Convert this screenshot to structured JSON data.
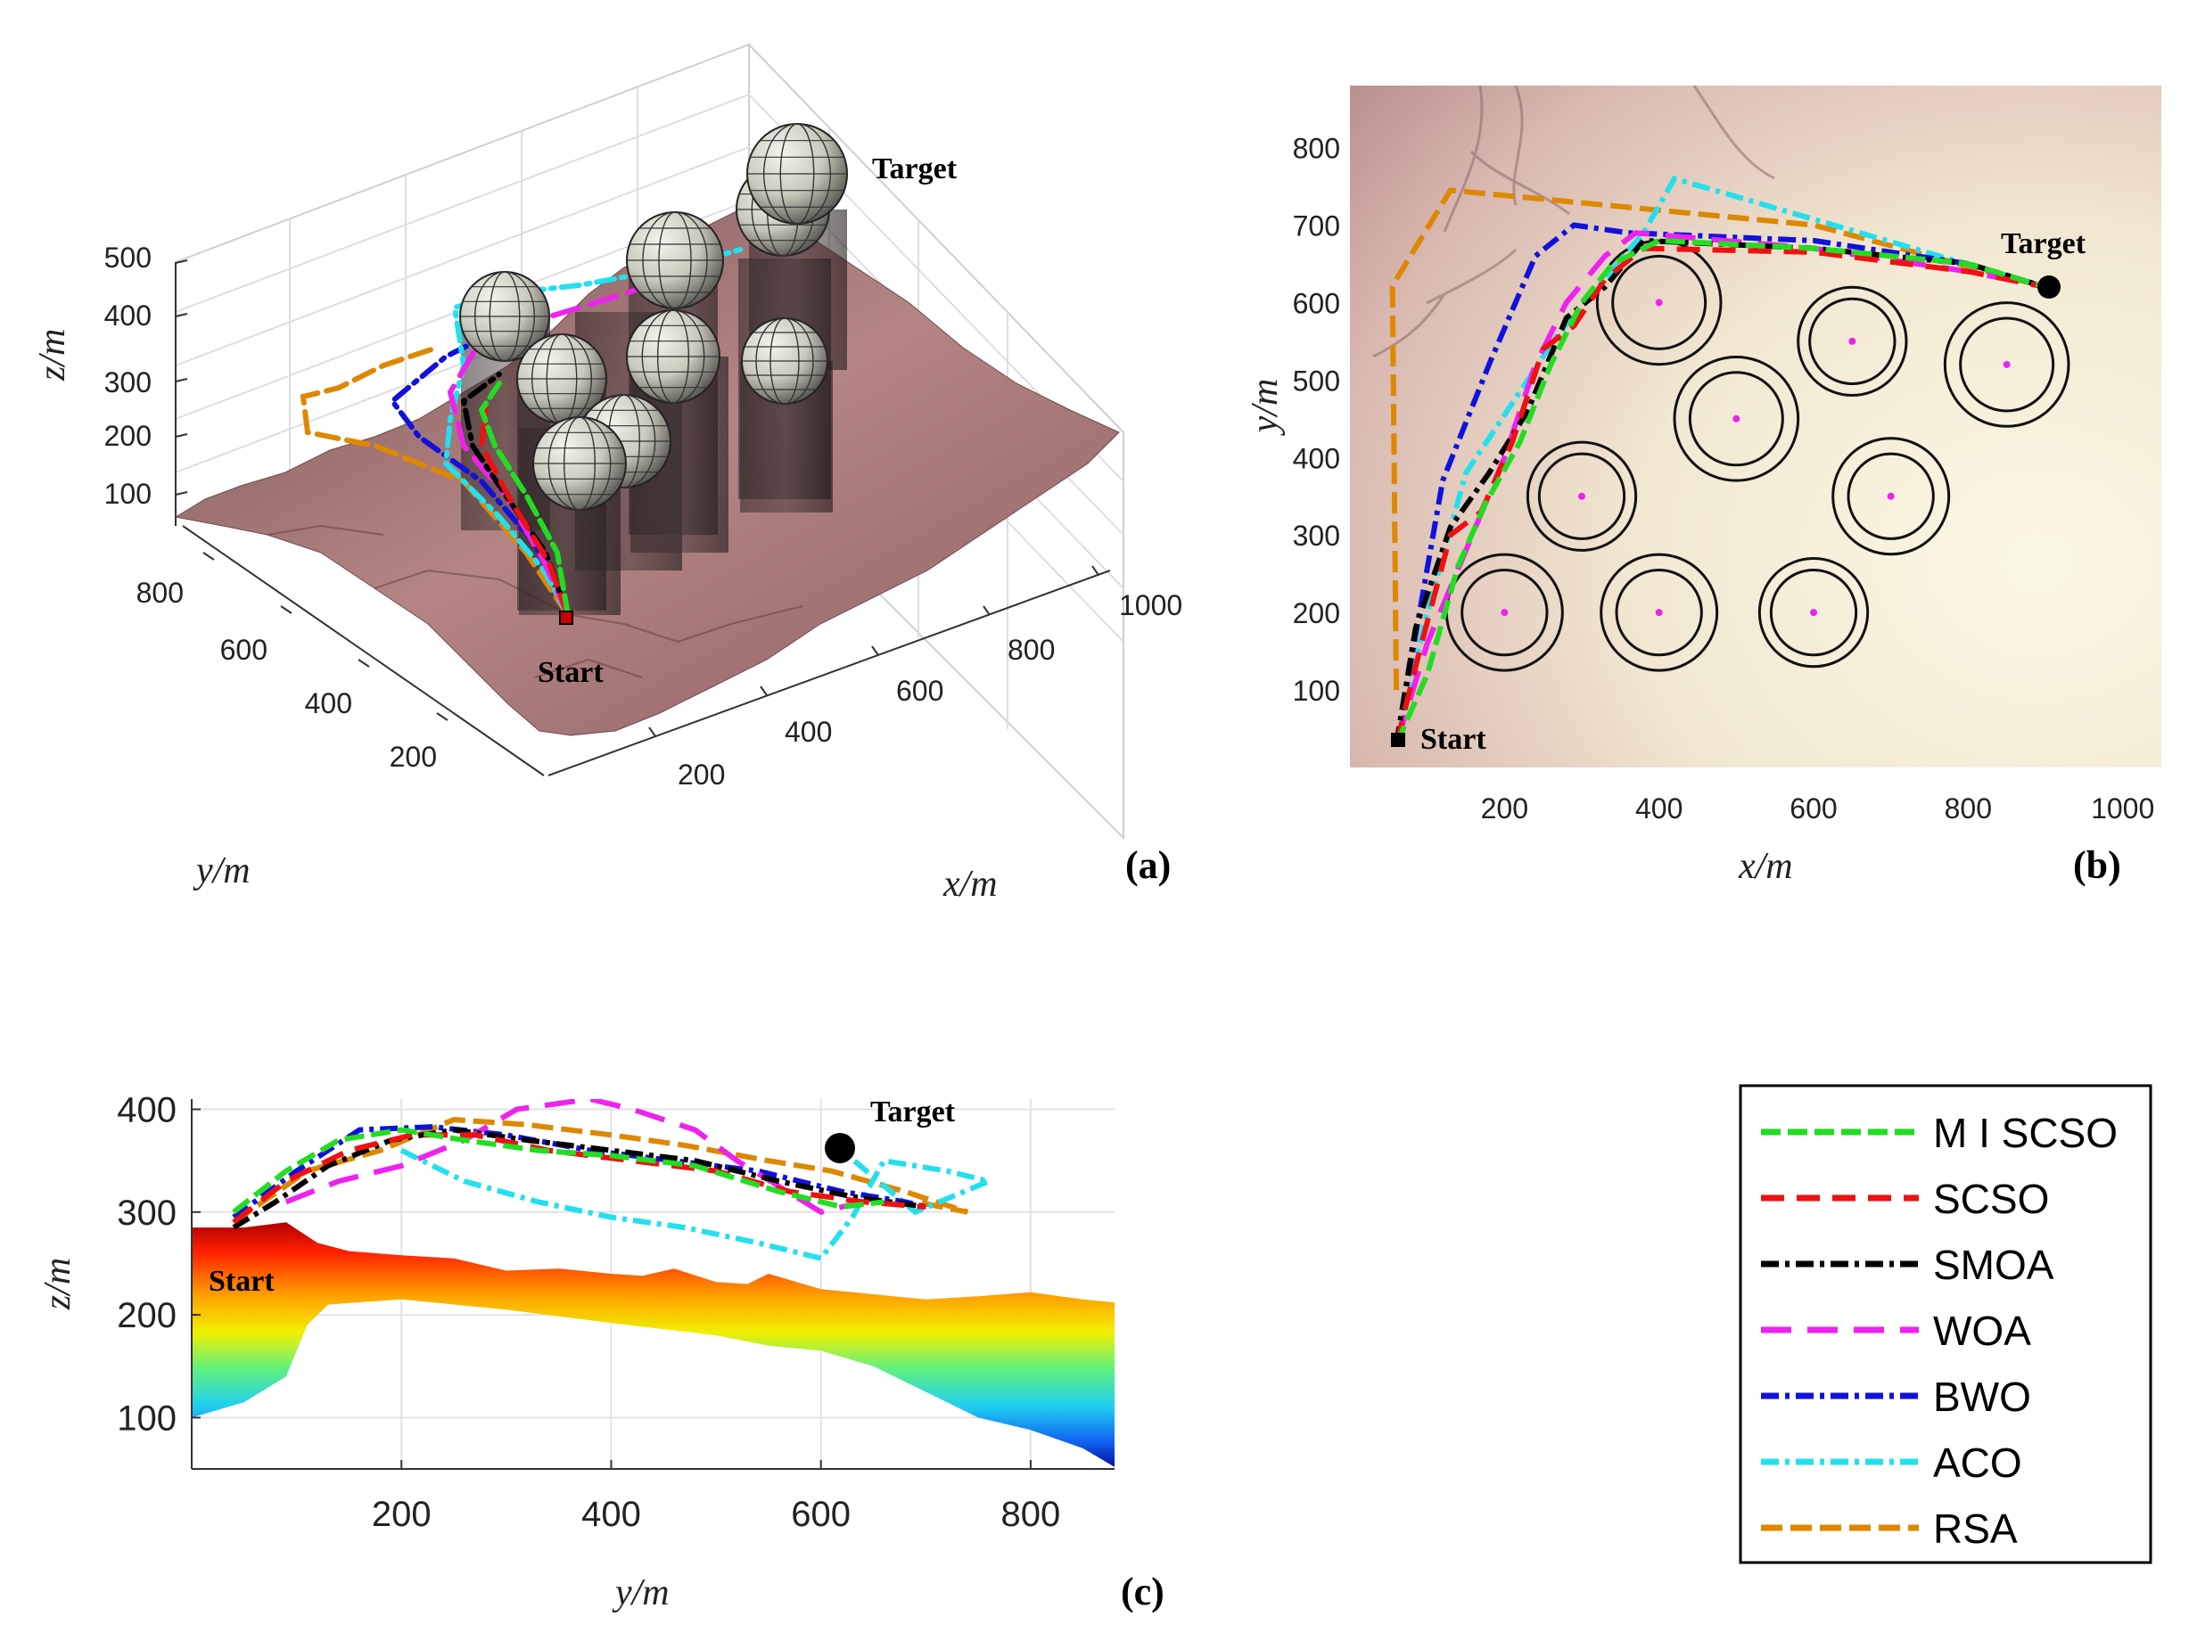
{
  "colors": {
    "MISCSO": "#22dd22",
    "SCSO": "#ee1111",
    "SMOA": "#000000",
    "WOA": "#ee22ee",
    "BWO": "#1111dd",
    "ACO": "#22e0ee",
    "RSA": "#dd8800"
  },
  "chart_data": [
    {
      "id": "a",
      "type": "line",
      "title": "(a)",
      "panel_label": "(a)",
      "projection": "3d",
      "xlabel": "x/m",
      "ylabel": "y/m",
      "zlabel": "z/m",
      "x_ticks": [
        "200",
        "400",
        "600",
        "800",
        "1000"
      ],
      "y_ticks": [
        "200",
        "400",
        "600",
        "800"
      ],
      "z_ticks": [
        "100",
        "200",
        "300",
        "400",
        "500"
      ],
      "annotations": {
        "start": "Start",
        "target": "Target"
      },
      "obstacles": [
        {
          "x": 200,
          "y": 200,
          "z": 350
        },
        {
          "x": 400,
          "y": 200,
          "z": 350
        },
        {
          "x": 600,
          "y": 200,
          "z": 350
        },
        {
          "x": 300,
          "y": 350,
          "z": 400
        },
        {
          "x": 500,
          "y": 450,
          "z": 400
        },
        {
          "x": 700,
          "y": 350,
          "z": 400
        },
        {
          "x": 400,
          "y": 600,
          "z": 450
        },
        {
          "x": 650,
          "y": 550,
          "z": 450
        },
        {
          "x": 850,
          "y": 520,
          "z": 450
        }
      ]
    },
    {
      "id": "b",
      "type": "line",
      "title": "(b)",
      "panel_label": "(b)",
      "xlabel": "x/m",
      "ylabel": "y/m",
      "xlim": [
        0,
        1050
      ],
      "ylim": [
        0,
        880
      ],
      "x_ticks": [
        200,
        400,
        600,
        800,
        1000
      ],
      "y_ticks": [
        100,
        200,
        300,
        400,
        500,
        600,
        700,
        800
      ],
      "annotations": {
        "start": "Start",
        "target": "Target"
      },
      "start": [
        60,
        30
      ],
      "target": [
        900,
        620
      ],
      "threats": [
        {
          "x": 200,
          "y": 200,
          "r1": 55,
          "r2": 75
        },
        {
          "x": 400,
          "y": 200,
          "r1": 55,
          "r2": 75
        },
        {
          "x": 600,
          "y": 200,
          "r1": 55,
          "r2": 70
        },
        {
          "x": 300,
          "y": 350,
          "r1": 55,
          "r2": 70
        },
        {
          "x": 500,
          "y": 450,
          "r1": 60,
          "r2": 80
        },
        {
          "x": 700,
          "y": 350,
          "r1": 55,
          "r2": 75
        },
        {
          "x": 400,
          "y": 600,
          "r1": 60,
          "r2": 80
        },
        {
          "x": 650,
          "y": 550,
          "r1": 55,
          "r2": 70
        },
        {
          "x": 850,
          "y": 520,
          "r1": 60,
          "r2": 80
        }
      ],
      "series": [
        {
          "name": "MISCSO",
          "x": [
            60,
            100,
            140,
            175,
            220,
            260,
            300,
            340,
            400,
            600,
            800,
            900
          ],
          "y": [
            30,
            120,
            260,
            340,
            420,
            520,
            600,
            650,
            680,
            670,
            650,
            620
          ]
        },
        {
          "name": "SCSO",
          "x": [
            60,
            90,
            130,
            170,
            210,
            250,
            290,
            330,
            380,
            600,
            800,
            900
          ],
          "y": [
            30,
            150,
            300,
            330,
            420,
            540,
            570,
            630,
            670,
            665,
            640,
            620
          ]
        },
        {
          "name": "SMOA",
          "x": [
            60,
            85,
            130,
            180,
            230,
            280,
            330,
            380,
            600,
            800,
            900
          ],
          "y": [
            30,
            180,
            310,
            380,
            460,
            580,
            620,
            680,
            670,
            650,
            620
          ]
        },
        {
          "name": "WOA",
          "x": [
            60,
            100,
            150,
            200,
            240,
            280,
            330,
            370,
            600,
            800,
            900
          ],
          "y": [
            30,
            160,
            280,
            400,
            520,
            600,
            660,
            690,
            670,
            640,
            620
          ]
        },
        {
          "name": "BWO",
          "x": [
            60,
            120,
            180,
            240,
            290,
            360,
            600,
            800,
            900
          ],
          "y": [
            30,
            370,
            520,
            660,
            700,
            690,
            680,
            650,
            620
          ]
        },
        {
          "name": "ACO",
          "x": [
            60,
            100,
            150,
            210,
            270,
            380,
            420,
            900
          ],
          "y": [
            30,
            200,
            380,
            470,
            560,
            690,
            760,
            620
          ]
        },
        {
          "name": "RSA",
          "x": [
            60,
            55,
            60,
            130,
            600,
            900
          ],
          "y": [
            100,
            620,
            630,
            745,
            700,
            620
          ]
        }
      ]
    },
    {
      "id": "c",
      "type": "line",
      "title": "(c)",
      "panel_label": "(c)",
      "xlabel": "y/m",
      "ylabel": "z/m",
      "xlim": [
        0,
        880
      ],
      "ylim": [
        50,
        410
      ],
      "x_ticks": [
        200,
        400,
        600,
        800
      ],
      "y_ticks": [
        100,
        200,
        300,
        400
      ],
      "annotations": {
        "start": "Start",
        "target": "Target"
      },
      "terrain_top": [
        [
          0,
          285
        ],
        [
          50,
          285
        ],
        [
          90,
          290
        ],
        [
          120,
          270
        ],
        [
          150,
          262
        ],
        [
          200,
          258
        ],
        [
          250,
          255
        ],
        [
          300,
          243
        ],
        [
          350,
          245
        ],
        [
          400,
          240
        ],
        [
          430,
          238
        ],
        [
          460,
          245
        ],
        [
          500,
          232
        ],
        [
          530,
          230
        ],
        [
          550,
          240
        ],
        [
          600,
          225
        ],
        [
          650,
          220
        ],
        [
          700,
          215
        ],
        [
          750,
          218
        ],
        [
          800,
          222
        ],
        [
          850,
          215
        ],
        [
          880,
          212
        ]
      ],
      "terrain_bottom": [
        [
          0,
          100
        ],
        [
          50,
          115
        ],
        [
          90,
          140
        ],
        [
          110,
          190
        ],
        [
          130,
          210
        ],
        [
          200,
          215
        ],
        [
          300,
          205
        ],
        [
          400,
          192
        ],
        [
          500,
          180
        ],
        [
          550,
          170
        ],
        [
          600,
          165
        ],
        [
          650,
          150
        ],
        [
          700,
          125
        ],
        [
          750,
          100
        ],
        [
          800,
          88
        ],
        [
          850,
          70
        ],
        [
          880,
          52
        ]
      ],
      "series": [
        {
          "name": "MISCSO",
          "x": [
            40,
            90,
            140,
            200,
            260,
            330,
            400,
            480,
            560,
            620,
            660
          ],
          "y": [
            300,
            340,
            370,
            380,
            370,
            360,
            355,
            345,
            320,
            305,
            310
          ]
        },
        {
          "name": "SCSO",
          "x": [
            40,
            90,
            150,
            210,
            270,
            340,
            420,
            500,
            570,
            640,
            700
          ],
          "y": [
            290,
            330,
            360,
            375,
            375,
            360,
            350,
            340,
            320,
            310,
            305
          ]
        },
        {
          "name": "SMOA",
          "x": [
            40,
            80,
            130,
            190,
            250,
            320,
            400,
            480,
            560,
            630,
            700
          ],
          "y": [
            285,
            310,
            345,
            370,
            380,
            370,
            360,
            350,
            330,
            315,
            305
          ]
        },
        {
          "name": "WOA",
          "x": [
            90,
            140,
            200,
            260,
            310,
            380,
            420,
            480,
            520,
            600,
            640
          ],
          "y": [
            310,
            330,
            345,
            370,
            400,
            410,
            400,
            380,
            350,
            300,
            310
          ]
        },
        {
          "name": "BWO",
          "x": [
            40,
            100,
            160,
            230,
            300,
            380,
            460,
            540,
            620,
            680,
            700
          ],
          "y": [
            295,
            340,
            380,
            383,
            375,
            360,
            350,
            340,
            320,
            310,
            305
          ]
        },
        {
          "name": "ACO",
          "x": [
            200,
            260,
            330,
            400,
            470,
            540,
            600,
            630,
            660,
            720,
            760,
            690,
            620
          ],
          "y": [
            360,
            330,
            310,
            295,
            285,
            270,
            255,
            295,
            350,
            340,
            330,
            300,
            360
          ]
        },
        {
          "name": "RSA",
          "x": [
            40,
            110,
            180,
            250,
            320,
            400,
            470,
            550,
            610,
            680,
            740,
            690
          ],
          "y": [
            290,
            340,
            360,
            390,
            385,
            375,
            365,
            350,
            340,
            320,
            300,
            310
          ]
        }
      ]
    }
  ],
  "legend": {
    "items": [
      {
        "key": "MISCSO",
        "label": "M I SCSO"
      },
      {
        "key": "SCSO",
        "label": "SCSO"
      },
      {
        "key": "SMOA",
        "label": "SMOA"
      },
      {
        "key": "WOA",
        "label": "WOA"
      },
      {
        "key": "BWO",
        "label": "BWO"
      },
      {
        "key": "ACO",
        "label": "ACO"
      },
      {
        "key": "RSA",
        "label": "RSA"
      }
    ]
  }
}
